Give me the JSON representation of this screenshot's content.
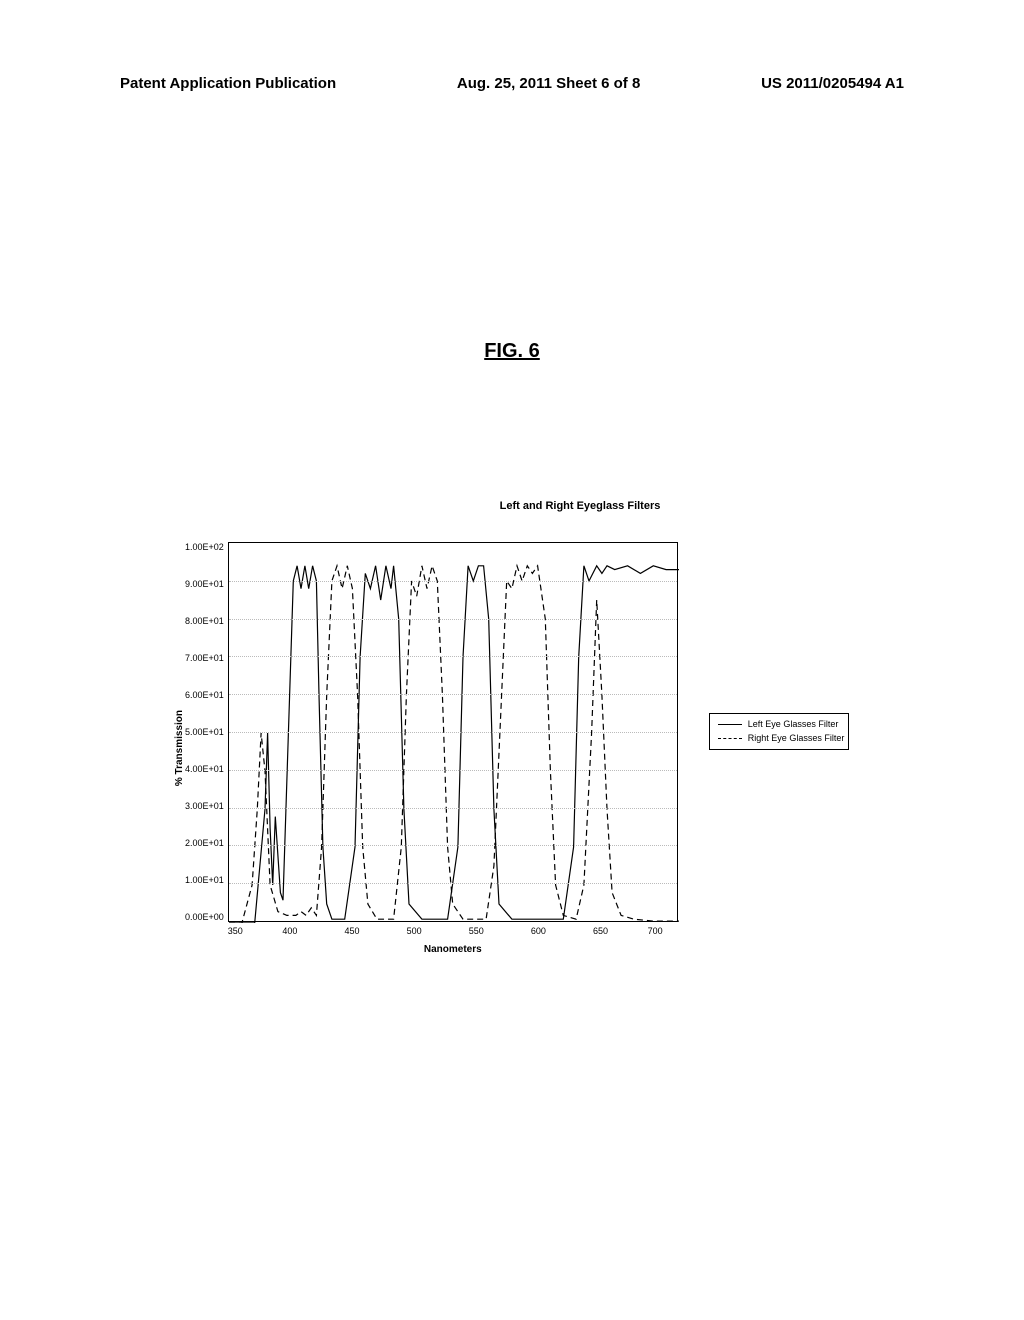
{
  "header": {
    "left": "Patent Application Publication",
    "center": "Aug. 25, 2011   Sheet 6 of 8",
    "right": "US 2011/0205494 A1"
  },
  "figure_label": "FIG. 6",
  "chart": {
    "title": "Left and Right Eyeglass Filters",
    "ylabel": "% Transmission",
    "xlabel": "Nanometers",
    "xlim": [
      350,
      700
    ],
    "ylim": [
      0,
      100
    ],
    "xtick_step": 50,
    "ytick_step": 10,
    "xticks": [
      "350",
      "400",
      "450",
      "500",
      "550",
      "600",
      "650",
      "700"
    ],
    "yticks": [
      "1.00E+02",
      "9.00E+01",
      "8.00E+01",
      "7.00E+01",
      "6.00E+01",
      "5.00E+01",
      "4.00E+01",
      "3.00E+01",
      "2.00E+01",
      "1.00E+01",
      "0.00E+00"
    ],
    "background_color": "#ffffff",
    "grid_color": "#bbbbbb",
    "line_color": "#000000",
    "legend": {
      "left": "Left Eye Glasses Filter",
      "right": "Right Eye Glasses Filter"
    },
    "series_left": {
      "style": "solid",
      "color": "#000000",
      "width": 1.2,
      "points": [
        [
          350,
          0
        ],
        [
          370,
          0
        ],
        [
          378,
          30
        ],
        [
          380,
          50
        ],
        [
          382,
          25
        ],
        [
          384,
          10
        ],
        [
          386,
          28
        ],
        [
          390,
          8
        ],
        [
          392,
          6
        ],
        [
          400,
          90
        ],
        [
          403,
          94
        ],
        [
          406,
          88
        ],
        [
          409,
          94
        ],
        [
          412,
          88
        ],
        [
          415,
          94
        ],
        [
          418,
          90
        ],
        [
          420,
          60
        ],
        [
          423,
          20
        ],
        [
          426,
          5
        ],
        [
          430,
          1
        ],
        [
          440,
          1
        ],
        [
          448,
          20
        ],
        [
          452,
          70
        ],
        [
          456,
          92
        ],
        [
          460,
          88
        ],
        [
          464,
          94
        ],
        [
          468,
          85
        ],
        [
          472,
          94
        ],
        [
          476,
          88
        ],
        [
          478,
          94
        ],
        [
          482,
          80
        ],
        [
          486,
          30
        ],
        [
          490,
          5
        ],
        [
          500,
          1
        ],
        [
          520,
          1
        ],
        [
          528,
          20
        ],
        [
          532,
          70
        ],
        [
          536,
          94
        ],
        [
          540,
          90
        ],
        [
          544,
          94
        ],
        [
          548,
          94
        ],
        [
          552,
          80
        ],
        [
          556,
          30
        ],
        [
          560,
          5
        ],
        [
          570,
          1
        ],
        [
          610,
          1
        ],
        [
          618,
          20
        ],
        [
          622,
          70
        ],
        [
          626,
          94
        ],
        [
          630,
          90
        ],
        [
          636,
          94
        ],
        [
          640,
          92
        ],
        [
          644,
          94
        ],
        [
          650,
          93
        ],
        [
          660,
          94
        ],
        [
          670,
          92
        ],
        [
          680,
          94
        ],
        [
          690,
          93
        ],
        [
          700,
          93
        ]
      ]
    },
    "series_right": {
      "style": "dashed",
      "color": "#000000",
      "width": 1.2,
      "dash": "6,4",
      "points": [
        [
          350,
          0
        ],
        [
          360,
          0
        ],
        [
          368,
          10
        ],
        [
          372,
          30
        ],
        [
          375,
          50
        ],
        [
          378,
          40
        ],
        [
          382,
          10
        ],
        [
          388,
          3
        ],
        [
          395,
          2
        ],
        [
          402,
          2
        ],
        [
          406,
          3
        ],
        [
          410,
          2
        ],
        [
          414,
          4
        ],
        [
          418,
          2
        ],
        [
          422,
          20
        ],
        [
          426,
          60
        ],
        [
          430,
          90
        ],
        [
          434,
          94
        ],
        [
          438,
          88
        ],
        [
          442,
          94
        ],
        [
          446,
          88
        ],
        [
          450,
          60
        ],
        [
          454,
          20
        ],
        [
          458,
          5
        ],
        [
          465,
          1
        ],
        [
          478,
          1
        ],
        [
          484,
          20
        ],
        [
          488,
          60
        ],
        [
          492,
          90
        ],
        [
          496,
          86
        ],
        [
          500,
          94
        ],
        [
          504,
          88
        ],
        [
          508,
          94
        ],
        [
          512,
          90
        ],
        [
          516,
          60
        ],
        [
          520,
          20
        ],
        [
          524,
          5
        ],
        [
          532,
          1
        ],
        [
          550,
          1
        ],
        [
          556,
          15
        ],
        [
          562,
          60
        ],
        [
          566,
          90
        ],
        [
          570,
          88
        ],
        [
          574,
          94
        ],
        [
          578,
          90
        ],
        [
          582,
          94
        ],
        [
          586,
          92
        ],
        [
          590,
          94
        ],
        [
          596,
          80
        ],
        [
          600,
          40
        ],
        [
          604,
          10
        ],
        [
          610,
          2
        ],
        [
          620,
          1
        ],
        [
          626,
          10
        ],
        [
          632,
          50
        ],
        [
          636,
          85
        ],
        [
          640,
          60
        ],
        [
          644,
          30
        ],
        [
          648,
          8
        ],
        [
          655,
          2
        ],
        [
          665,
          1
        ],
        [
          680,
          0.5
        ],
        [
          700,
          0.5
        ]
      ]
    }
  }
}
